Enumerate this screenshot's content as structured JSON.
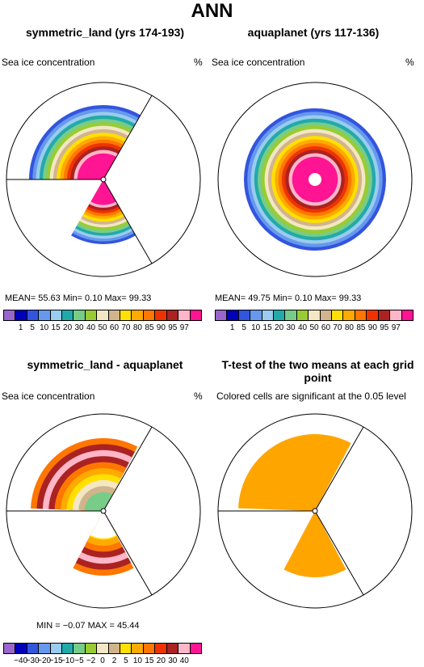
{
  "figure": {
    "title": "ANN"
  },
  "panels": [
    {
      "title": "symmetric_land (yrs 174-193)",
      "left_label": "Sea ice concentration",
      "right_label": "%",
      "stats": "MEAN=   55.63   Min=     0.10   Max=   99.33"
    },
    {
      "title": "aquaplanet (yrs 117-136)",
      "left_label": "Sea ice concentration",
      "right_label": "%",
      "stats": "MEAN=   49.75   Min=     0.10   Max=   99.33"
    },
    {
      "title": "symmetric_land - aquaplanet",
      "left_label": "Sea ice concentration",
      "right_label": "%",
      "stats": "MIN =   −0.07  MAX =   45.44"
    },
    {
      "title": "T-test of the two means at each grid point",
      "left_label": "Colored cells are significant at the 0.05 level",
      "right_label": "",
      "stats": ""
    }
  ],
  "colorbars": {
    "abs": {
      "colors": [
        "#9966cc",
        "#0000bb",
        "#3355dd",
        "#6699ee",
        "#99ccee",
        "#22aaaa",
        "#77cc88",
        "#99cc33",
        "#f3e7c4",
        "#d2b48c",
        "#ffe000",
        "#ffaa00",
        "#ff7700",
        "#ee3300",
        "#aa2222",
        "#ffb6c8",
        "#ff1493"
      ],
      "labels": [
        "1",
        "5",
        "10",
        "15",
        "20",
        "30",
        "40",
        "50",
        "60",
        "70",
        "80",
        "85",
        "90",
        "95",
        "97"
      ]
    },
    "diff": {
      "colors": [
        "#9966cc",
        "#0000bb",
        "#3355dd",
        "#6699ee",
        "#99ccee",
        "#22aaaa",
        "#77cc88",
        "#99cc33",
        "#f3e7c4",
        "#d2b48c",
        "#ffe000",
        "#ffaa00",
        "#ff7700",
        "#ee3300",
        "#aa2222",
        "#ffb6c8",
        "#ff1493"
      ],
      "labels": [
        "−40",
        "−30",
        "−20",
        "−15",
        "−10",
        "−5",
        "−2",
        "0",
        "2",
        "5",
        "10",
        "15",
        "20",
        "30",
        "40"
      ]
    }
  },
  "chart_data": [
    {
      "type": "heatmap",
      "title": "symmetric_land (yrs 174-193)",
      "variable": "Sea ice concentration",
      "units": "%",
      "projection": "polar stereographic",
      "mean": 55.63,
      "min": 0.1,
      "max": 99.33,
      "levels": [
        1,
        5,
        10,
        15,
        20,
        30,
        40,
        50,
        60,
        70,
        80,
        85,
        90,
        95,
        97
      ],
      "ocean_sectors_deg": [
        [
          -10,
          70
        ],
        [
          215,
          245
        ]
      ],
      "ice_edge_colatitude_deg": 30
    },
    {
      "type": "heatmap",
      "title": "aquaplanet (yrs 117-136)",
      "variable": "Sea ice concentration",
      "units": "%",
      "projection": "polar stereographic",
      "mean": 49.75,
      "min": 0.1,
      "max": 99.33,
      "levels": [
        1,
        5,
        10,
        15,
        20,
        30,
        40,
        50,
        60,
        70,
        80,
        85,
        90,
        95,
        97
      ],
      "ice_edge_colatitude_deg": 31
    },
    {
      "type": "heatmap",
      "title": "symmetric_land - aquaplanet",
      "variable": "Sea ice concentration",
      "units": "%",
      "projection": "polar stereographic",
      "min": -0.07,
      "max": 45.44,
      "levels": [
        -40,
        -30,
        -20,
        -15,
        -10,
        -5,
        -2,
        0,
        2,
        5,
        10,
        15,
        20,
        30,
        40
      ]
    },
    {
      "type": "heatmap",
      "title": "T-test of the two means at each grid point",
      "note": "Colored cells are significant at the 0.05 level",
      "significance_level": 0.05,
      "significant_color": "#ffa500"
    }
  ]
}
